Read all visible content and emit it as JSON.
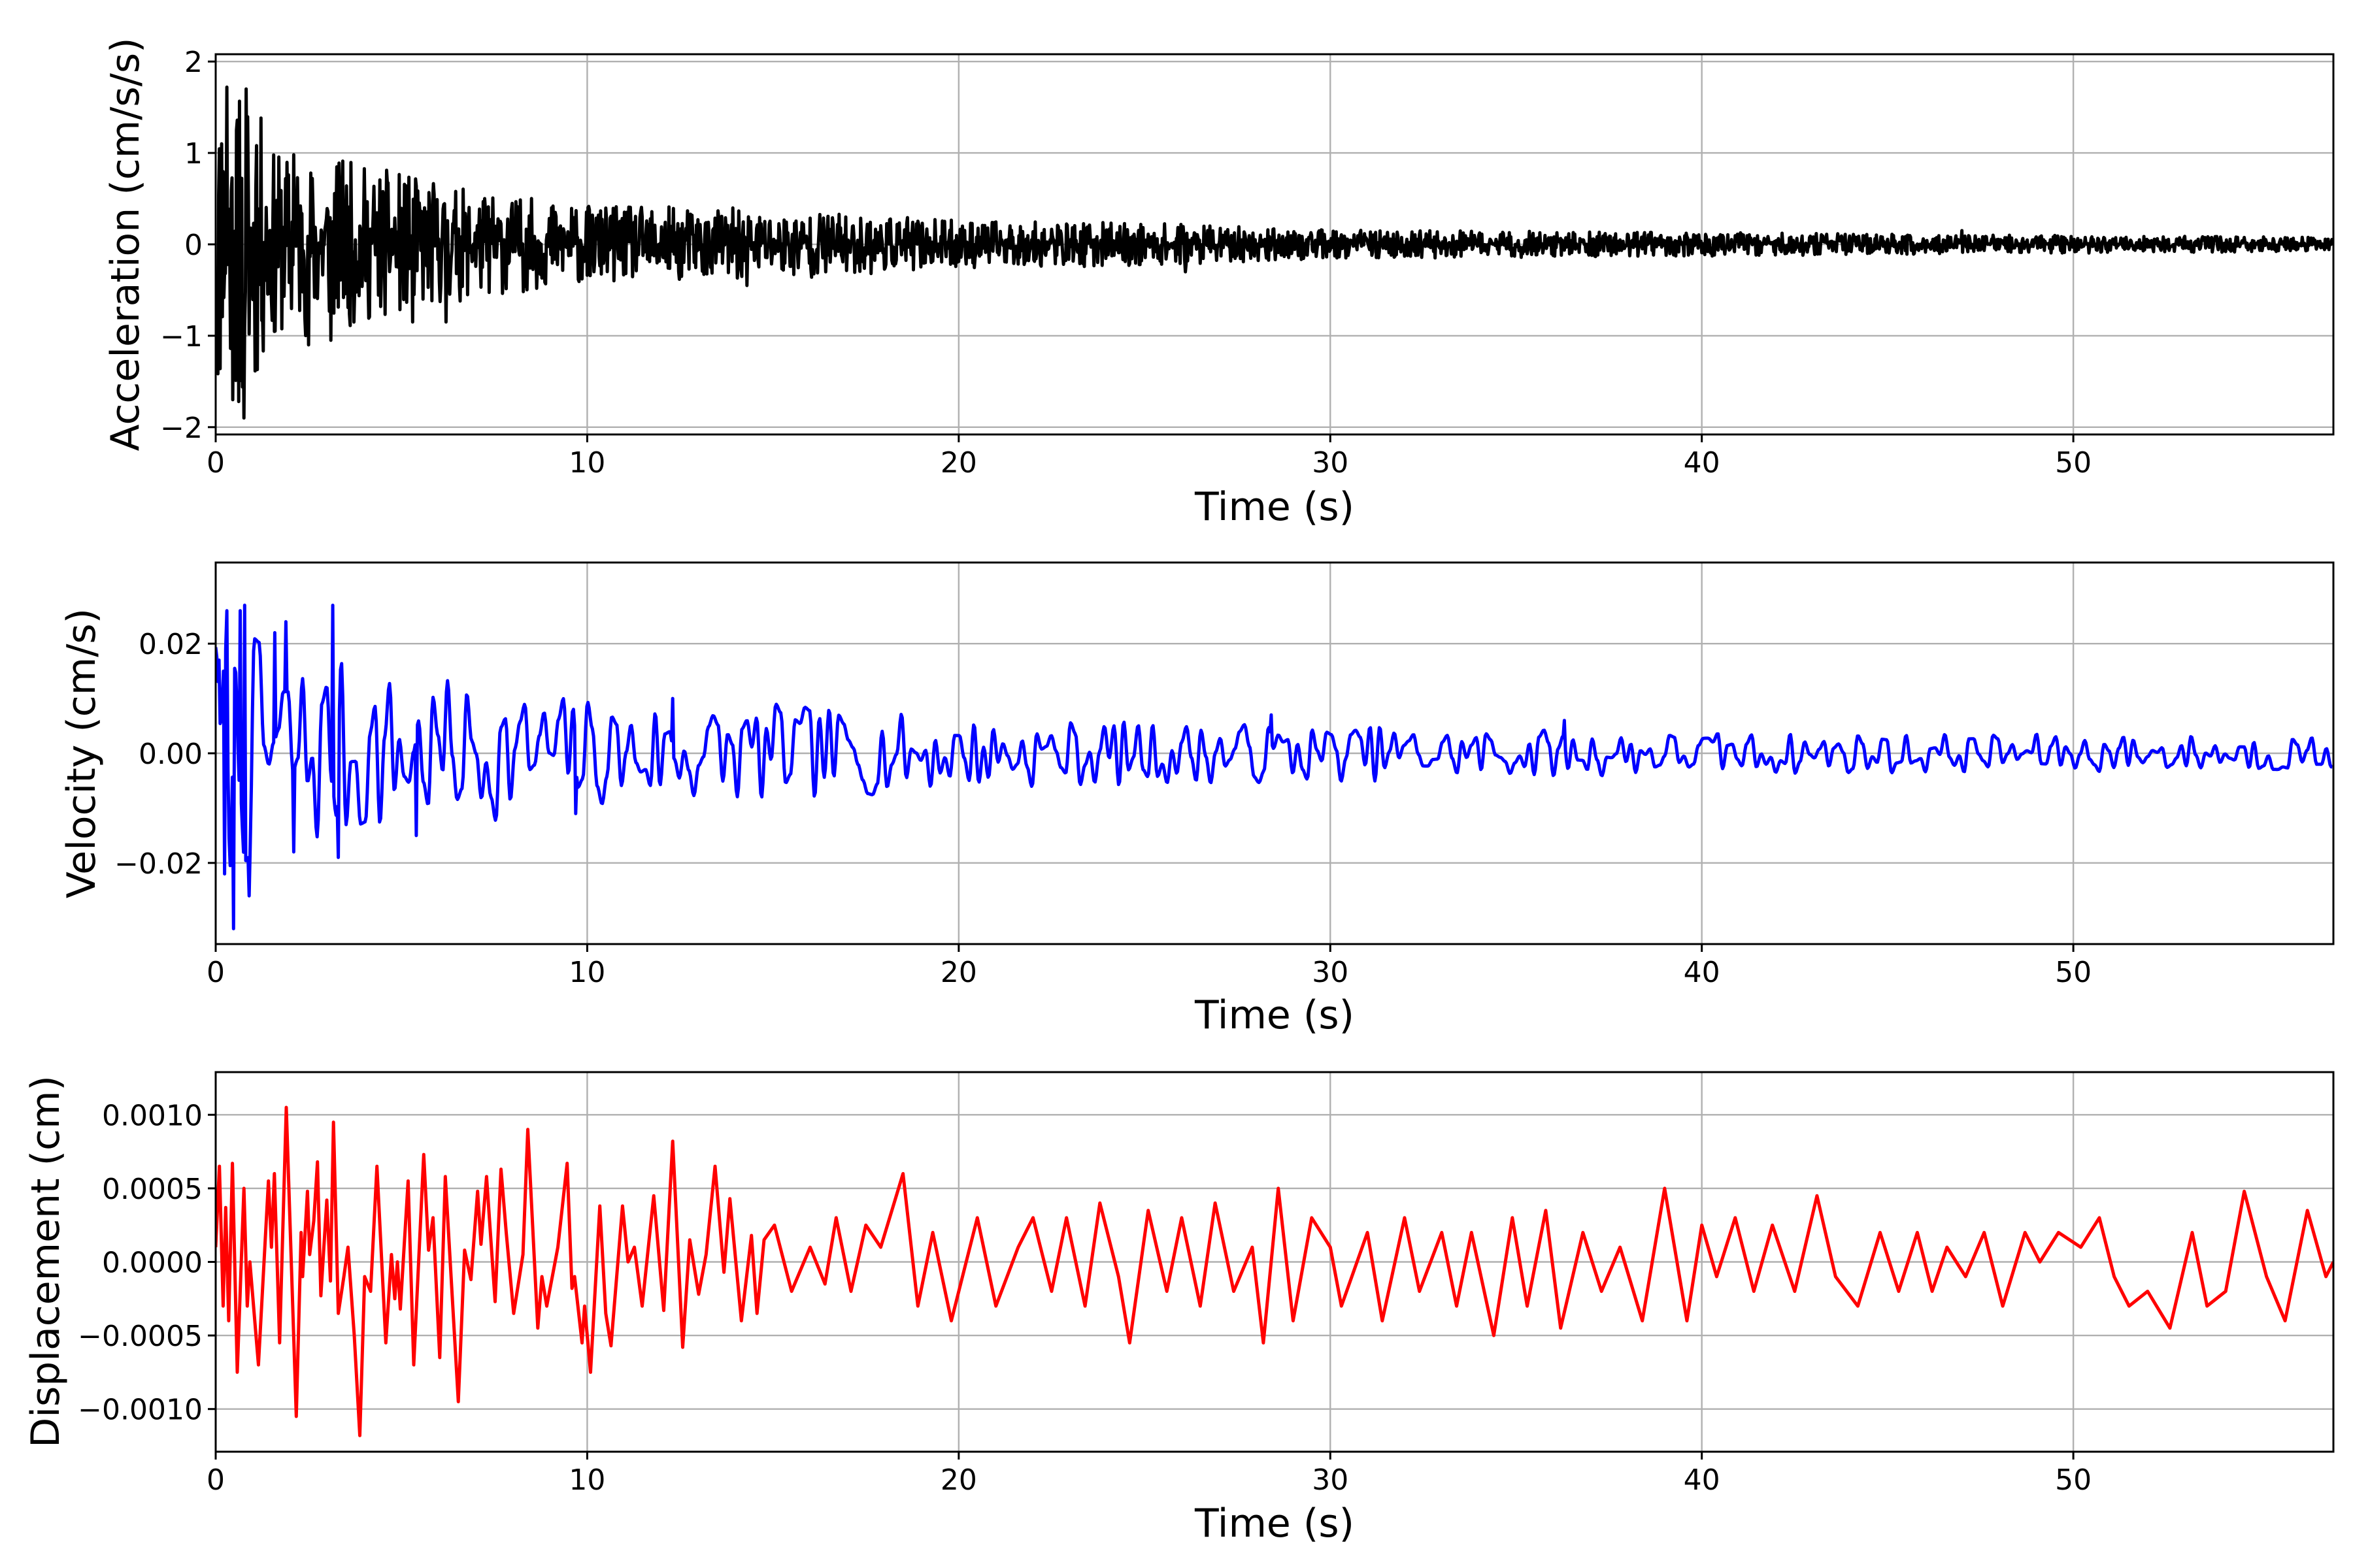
{
  "chart_data": [
    {
      "type": "line",
      "title": "",
      "xlabel": "Time (s)",
      "ylabel": "Acceleration (cm/s/s)",
      "xlim": [
        0,
        57
      ],
      "ylim": [
        -2.08,
        2.08
      ],
      "grid": true,
      "color": "#000000",
      "xticks": [
        0,
        10,
        20,
        30,
        40,
        50
      ],
      "xtick_labels": [
        "0",
        "10",
        "20",
        "30",
        "40",
        "50"
      ],
      "yticks": [
        -2,
        -1,
        0,
        1,
        2
      ],
      "ytick_labels": [
        "−2",
        "−1",
        "0",
        "1",
        "2"
      ],
      "series": [
        {
          "name": "Acceleration",
          "generator": {
            "dt": 0.02,
            "seed": 11,
            "kind": "rough"
          },
          "envelope": [
            [
              0,
              1.4
            ],
            [
              1,
              1.3
            ],
            [
              1.5,
              0.8
            ],
            [
              3,
              0.75
            ],
            [
              5,
              0.6
            ],
            [
              7,
              0.45
            ],
            [
              10,
              0.33
            ],
            [
              15,
              0.3
            ],
            [
              20,
              0.2
            ],
            [
              25,
              0.18
            ],
            [
              30,
              0.12
            ],
            [
              40,
              0.1
            ],
            [
              47,
              0.08
            ],
            [
              57,
              0.06
            ]
          ],
          "peaks": [
            [
              0.15,
              1.1
            ],
            [
              0.3,
              1.72
            ],
            [
              0.45,
              -1.7
            ],
            [
              0.55,
              1.25
            ],
            [
              0.62,
              -1.72
            ],
            [
              0.75,
              -1.9
            ],
            [
              0.82,
              1.7
            ],
            [
              1.1,
              1.08
            ],
            [
              1.6,
              -0.95
            ],
            [
              2.1,
              0.98
            ],
            [
              2.5,
              -1.1
            ],
            [
              3.1,
              -1.05
            ],
            [
              5.3,
              -0.85
            ],
            [
              6.2,
              -0.85
            ],
            [
              14.3,
              -0.45
            ],
            [
              26.1,
              -0.3
            ],
            [
              47.0,
              0.15
            ]
          ]
        }
      ]
    },
    {
      "type": "line",
      "title": "",
      "xlabel": "Time (s)",
      "ylabel": "Velocity (cm/s)",
      "xlim": [
        0,
        57
      ],
      "ylim": [
        -0.0348,
        0.0348
      ],
      "grid": true,
      "color": "#0000ff",
      "xticks": [
        0,
        10,
        20,
        30,
        40,
        50
      ],
      "xtick_labels": [
        "0",
        "10",
        "20",
        "30",
        "40",
        "50"
      ],
      "yticks": [
        -0.02,
        0.0,
        0.02
      ],
      "ytick_labels": [
        "−0.02",
        "0.00",
        "0.02"
      ],
      "series": [
        {
          "name": "Velocity",
          "generator": {
            "dt": 0.03,
            "seed": 7,
            "kind": "smooth",
            "knot": 0.13
          },
          "envelope": [
            [
              0,
              0.018
            ],
            [
              3,
              0.014
            ],
            [
              5,
              0.011
            ],
            [
              10,
              0.008
            ],
            [
              15,
              0.007
            ],
            [
              20,
              0.005
            ],
            [
              30,
              0.004
            ],
            [
              40,
              0.003
            ],
            [
              57,
              0.0025
            ]
          ],
          "peaks": [
            [
              0.1,
              0.017
            ],
            [
              0.25,
              -0.022
            ],
            [
              0.3,
              0.026
            ],
            [
              0.48,
              -0.032
            ],
            [
              0.65,
              0.026
            ],
            [
              0.78,
              0.027
            ],
            [
              0.9,
              -0.026
            ],
            [
              1.6,
              0.022
            ],
            [
              1.9,
              0.024
            ],
            [
              2.1,
              -0.018
            ],
            [
              3.15,
              0.027
            ],
            [
              3.3,
              -0.019
            ],
            [
              5.4,
              -0.015
            ],
            [
              9.7,
              -0.011
            ],
            [
              12.3,
              0.01
            ],
            [
              28.4,
              0.007
            ],
            [
              36.3,
              0.006
            ]
          ]
        }
      ]
    },
    {
      "type": "line",
      "title": "",
      "xlabel": "Time (s)",
      "ylabel": "Displacement (cm)",
      "xlim": [
        0,
        57
      ],
      "ylim": [
        -0.00129,
        0.00129
      ],
      "grid": true,
      "color": "#ff0000",
      "xticks": [
        0,
        10,
        20,
        30,
        40,
        50
      ],
      "xtick_labels": [
        "0",
        "10",
        "20",
        "30",
        "40",
        "50"
      ],
      "yticks": [
        -0.001,
        -0.0005,
        0.0,
        0.0005,
        0.001
      ],
      "ytick_labels": [
        "−0.0010",
        "−0.0005",
        "0.0000",
        "0.0005",
        "0.0010"
      ],
      "series": [
        {
          "name": "Displacement",
          "points": [
            [
              0,
              0.0001
            ],
            [
              0.1,
              0.00065
            ],
            [
              0.2,
              -0.0003
            ],
            [
              0.27,
              0.00037
            ],
            [
              0.35,
              -0.0004
            ],
            [
              0.45,
              0.00067
            ],
            [
              0.58,
              -0.00075
            ],
            [
              0.76,
              0.0005
            ],
            [
              0.85,
              -0.0003
            ],
            [
              0.92,
              0.0
            ],
            [
              1.15,
              -0.0007
            ],
            [
              1.42,
              0.00055
            ],
            [
              1.5,
              0.0001
            ],
            [
              1.58,
              0.0006
            ],
            [
              1.72,
              -0.00055
            ],
            [
              1.9,
              0.00105
            ],
            [
              2.17,
              -0.00105
            ],
            [
              2.3,
              0.0002
            ],
            [
              2.34,
              -0.0001
            ],
            [
              2.47,
              0.00048
            ],
            [
              2.53,
              5e-05
            ],
            [
              2.64,
              0.00028
            ],
            [
              2.74,
              0.00068
            ],
            [
              2.83,
              -0.00023
            ],
            [
              2.99,
              0.00042
            ],
            [
              3.09,
              -0.00013
            ],
            [
              3.17,
              0.00095
            ],
            [
              3.3,
              -0.00035
            ],
            [
              3.45,
              -0.0001
            ],
            [
              3.56,
              0.0001
            ],
            [
              3.73,
              -0.0005
            ],
            [
              3.88,
              -0.00118
            ],
            [
              4.01,
              -0.0001
            ],
            [
              4.17,
              -0.0002
            ],
            [
              4.34,
              0.00065
            ],
            [
              4.58,
              -0.00055
            ],
            [
              4.73,
              5e-05
            ],
            [
              4.82,
              -0.00025
            ],
            [
              4.89,
              0.0
            ],
            [
              4.97,
              -0.00032
            ],
            [
              5.18,
              0.00055
            ],
            [
              5.33,
              -0.0007
            ],
            [
              5.6,
              0.00073
            ],
            [
              5.73,
              8e-05
            ],
            [
              5.85,
              0.0003
            ],
            [
              6.03,
              -0.00065
            ],
            [
              6.18,
              0.00058
            ],
            [
              6.53,
              -0.00095
            ],
            [
              6.7,
              8e-05
            ],
            [
              6.87,
              -0.00012
            ],
            [
              7.05,
              0.00048
            ],
            [
              7.14,
              0.00012
            ],
            [
              7.29,
              0.00058
            ],
            [
              7.52,
              -0.00027
            ],
            [
              7.68,
              0.00063
            ],
            [
              7.82,
              0.0002
            ],
            [
              8.02,
              -0.00035
            ],
            [
              8.27,
              5e-05
            ],
            [
              8.4,
              0.0009
            ],
            [
              8.67,
              -0.00045
            ],
            [
              8.78,
              -0.0001
            ],
            [
              8.91,
              -0.0003
            ],
            [
              9.21,
              0.0001
            ],
            [
              9.46,
              0.00067
            ],
            [
              9.59,
              -0.00018
            ],
            [
              9.66,
              -0.0001
            ],
            [
              9.86,
              -0.00055
            ],
            [
              9.93,
              -0.0003
            ],
            [
              10.09,
              -0.00075
            ],
            [
              10.34,
              0.00038
            ],
            [
              10.5,
              -0.00035
            ],
            [
              10.64,
              -0.00057
            ],
            [
              10.95,
              0.00038
            ],
            [
              11.1,
              0.0
            ],
            [
              11.27,
              0.0001
            ],
            [
              11.48,
              -0.0003
            ],
            [
              11.79,
              0.00045
            ],
            [
              12.06,
              -0.00033
            ],
            [
              12.3,
              0.00082
            ],
            [
              12.57,
              -0.00058
            ],
            [
              12.76,
              0.00015
            ],
            [
              13.0,
              -0.00022
            ],
            [
              13.2,
              5e-05
            ],
            [
              13.44,
              0.00065
            ],
            [
              13.68,
              -7e-05
            ],
            [
              13.84,
              0.00043
            ],
            [
              14.15,
              -0.0004
            ],
            [
              14.42,
              0.00018
            ],
            [
              14.57,
              -0.00035
            ],
            [
              14.76,
              0.00015
            ],
            [
              15.04,
              0.00025
            ],
            [
              15.5,
              -0.0002
            ],
            [
              16.0,
              0.0001
            ],
            [
              16.4,
              -0.00015
            ],
            [
              16.7,
              0.0003
            ],
            [
              17.1,
              -0.0002
            ],
            [
              17.5,
              0.00025
            ],
            [
              17.9,
              0.0001
            ],
            [
              18.5,
              0.0006
            ],
            [
              18.9,
              -0.0003
            ],
            [
              19.3,
              0.0002
            ],
            [
              19.8,
              -0.0004
            ],
            [
              20.5,
              0.0003
            ],
            [
              21.0,
              -0.0003
            ],
            [
              21.6,
              0.0001
            ],
            [
              22.0,
              0.0003
            ],
            [
              22.5,
              -0.0002
            ],
            [
              22.9,
              0.0003
            ],
            [
              23.4,
              -0.0003
            ],
            [
              23.8,
              0.0004
            ],
            [
              24.3,
              -0.0001
            ],
            [
              24.6,
              -0.00055
            ],
            [
              25.1,
              0.00035
            ],
            [
              25.6,
              -0.0002
            ],
            [
              26.0,
              0.0003
            ],
            [
              26.5,
              -0.0003
            ],
            [
              26.9,
              0.0004
            ],
            [
              27.4,
              -0.0002
            ],
            [
              27.9,
              0.0001
            ],
            [
              28.2,
              -0.00055
            ],
            [
              28.6,
              0.0005
            ],
            [
              29.0,
              -0.0004
            ],
            [
              29.5,
              0.0003
            ],
            [
              30.0,
              0.0001
            ],
            [
              30.3,
              -0.0003
            ],
            [
              31.0,
              0.0002
            ],
            [
              31.4,
              -0.0004
            ],
            [
              32.0,
              0.0003
            ],
            [
              32.4,
              -0.0002
            ],
            [
              33.0,
              0.0002
            ],
            [
              33.4,
              -0.0003
            ],
            [
              33.8,
              0.0002
            ],
            [
              34.4,
              -0.0005
            ],
            [
              34.9,
              0.0003
            ],
            [
              35.3,
              -0.0003
            ],
            [
              35.8,
              0.00035
            ],
            [
              36.2,
              -0.00045
            ],
            [
              36.8,
              0.0002
            ],
            [
              37.3,
              -0.0002
            ],
            [
              37.8,
              0.0001
            ],
            [
              38.4,
              -0.0004
            ],
            [
              39.0,
              0.0005
            ],
            [
              39.6,
              -0.0004
            ],
            [
              40.0,
              0.00025
            ],
            [
              40.4,
              -0.0001
            ],
            [
              40.9,
              0.0003
            ],
            [
              41.4,
              -0.0002
            ],
            [
              41.9,
              0.00025
            ],
            [
              42.5,
              -0.0002
            ],
            [
              43.1,
              0.00045
            ],
            [
              43.6,
              -0.0001
            ],
            [
              44.2,
              -0.0003
            ],
            [
              44.8,
              0.0002
            ],
            [
              45.3,
              -0.0002
            ],
            [
              45.8,
              0.0002
            ],
            [
              46.2,
              -0.0002
            ],
            [
              46.6,
              0.0001
            ],
            [
              47.1,
              -0.0001
            ],
            [
              47.6,
              0.0002
            ],
            [
              48.1,
              -0.0003
            ],
            [
              48.7,
              0.0002
            ],
            [
              49.1,
              0.0
            ],
            [
              49.6,
              0.0002
            ],
            [
              50.2,
              0.0001
            ],
            [
              50.7,
              0.0003
            ],
            [
              51.1,
              -0.0001
            ],
            [
              51.5,
              -0.0003
            ],
            [
              52.0,
              -0.0002
            ],
            [
              52.6,
              -0.00045
            ],
            [
              53.2,
              0.0002
            ],
            [
              53.6,
              -0.0003
            ],
            [
              54.1,
              -0.0002
            ],
            [
              54.6,
              0.00048
            ],
            [
              55.2,
              -0.0001
            ],
            [
              55.7,
              -0.0004
            ],
            [
              56.3,
              0.00035
            ],
            [
              56.8,
              -0.0001
            ],
            [
              57.0,
              0.0
            ]
          ]
        }
      ]
    }
  ]
}
